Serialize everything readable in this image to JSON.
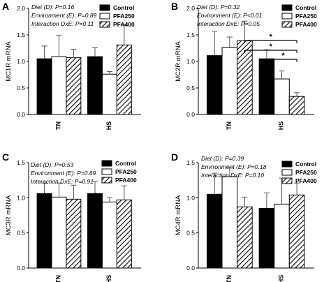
{
  "chart_data": [
    {
      "type": "bar",
      "panel": "A",
      "ylabel": "MC1R mRNA",
      "categories": [
        "TN",
        "HS"
      ],
      "ylim": [
        0,
        2
      ],
      "yticks": [
        "0.0",
        "0.5",
        "1.0",
        "1.5",
        "2.0"
      ],
      "stats": [
        "Diet (D): P=0.16",
        "Environment (E): P=0.89",
        "Interaction DxE: P=0.11"
      ],
      "legend_position": "top-right",
      "series": [
        {
          "name": "Control",
          "values": [
            1.05,
            1.09
          ],
          "errors": [
            0.24,
            0.17
          ]
        },
        {
          "name": "PFA250",
          "values": [
            1.09,
            0.76
          ],
          "errors": [
            0.4,
            0.05
          ]
        },
        {
          "name": "PFA400",
          "values": [
            1.07,
            1.31
          ],
          "errors": [
            0.16,
            0.38
          ]
        }
      ],
      "annotations": []
    },
    {
      "type": "bar",
      "panel": "B",
      "ylabel": "MC2R mRNA",
      "categories": [
        "TN",
        "HS"
      ],
      "ylim": [
        0,
        2
      ],
      "yticks": [
        "0.0",
        "0.5",
        "1.0",
        "1.5",
        "2.0"
      ],
      "stats": [
        "Diet (D): P=0.32",
        "Environment (E): P<0.01",
        "Interaction DxE: P=0.05"
      ],
      "legend_position": "top-right",
      "series": [
        {
          "name": "Control",
          "values": [
            1.11,
            1.05
          ],
          "errors": [
            0.46,
            0.17
          ]
        },
        {
          "name": "PFA250",
          "values": [
            1.26,
            0.67
          ],
          "errors": [
            0.2,
            0.15
          ]
        },
        {
          "name": "PFA400",
          "values": [
            1.39,
            0.34
          ],
          "errors": [
            0.37,
            0.07
          ]
        }
      ],
      "annotations": [
        "*",
        "*",
        "*"
      ]
    },
    {
      "type": "bar",
      "panel": "C",
      "ylabel": "MC3R mRNA",
      "categories": [
        "TN",
        "HS"
      ],
      "ylim": [
        0,
        1.5
      ],
      "yticks": [
        "0.0",
        "0.5",
        "1.0",
        "1.5"
      ],
      "stats": [
        "Diet (D): P=0.53",
        "Environment (E): P=0.69",
        "Interaction DxE: P=0.91"
      ],
      "legend_position": "top-right",
      "series": [
        {
          "name": "Control",
          "values": [
            1.06,
            1.06
          ],
          "errors": [
            0.15,
            0.17
          ]
        },
        {
          "name": "PFA250",
          "values": [
            1.01,
            0.94
          ],
          "errors": [
            0.2,
            0.06
          ]
        },
        {
          "name": "PFA400",
          "values": [
            0.98,
            0.97
          ],
          "errors": [
            0.2,
            0.2
          ]
        }
      ],
      "annotations": []
    },
    {
      "type": "bar",
      "panel": "D",
      "ylabel": "MC4R mRNA",
      "categories": [
        "TN",
        "HS"
      ],
      "ylim": [
        0,
        1.5
      ],
      "yticks": [
        "0.0",
        "0.5",
        "1.0",
        "1.5"
      ],
      "stats": [
        "Diet (D): P=0.39",
        "Environment (E): P=0.18",
        "Interaction DxE: P=0.10"
      ],
      "legend_position": "top-right",
      "series": [
        {
          "name": "Control",
          "values": [
            1.05,
            0.85
          ],
          "errors": [
            0.3,
            0.22
          ]
        },
        {
          "name": "PFA250",
          "values": [
            1.3,
            0.91
          ],
          "errors": [
            0.13,
            0.37
          ]
        },
        {
          "name": "PFA400",
          "values": [
            0.87,
            1.04
          ],
          "errors": [
            0.14,
            0.17
          ]
        }
      ],
      "annotations": []
    }
  ]
}
